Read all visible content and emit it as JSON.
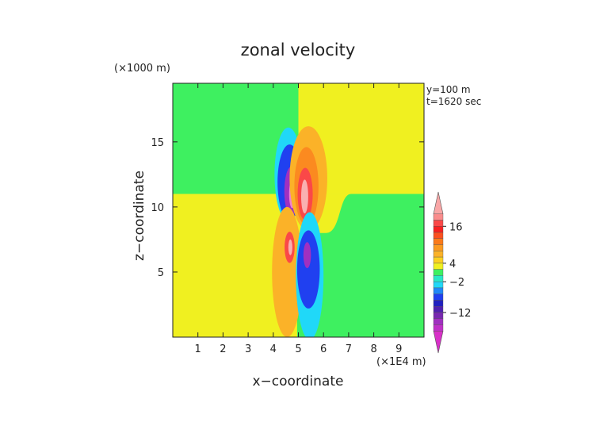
{
  "chart_data": {
    "type": "heatmap",
    "title": "zonal velocity",
    "xlabel": "x−coordinate",
    "ylabel": "z−coordinate",
    "x_units": "(×1E4 m)",
    "y_units": "(×1000 m)",
    "annotations": [
      "y=100 m",
      "t=1620 sec"
    ],
    "xlim": [
      0,
      10
    ],
    "ylim": [
      0,
      19.5
    ],
    "x_ticks": [
      "1",
      "2",
      "3",
      "4",
      "5",
      "6",
      "7",
      "8",
      "9"
    ],
    "x_tick_values": [
      1,
      2,
      3,
      4,
      5,
      6,
      7,
      8,
      9
    ],
    "y_ticks": [
      "5",
      "10",
      "15"
    ],
    "y_tick_values": [
      5,
      10,
      15
    ],
    "background_regions": [
      {
        "name": "upper-left",
        "x": [
          0,
          5
        ],
        "z": [
          11,
          19.5
        ],
        "level": "green"
      },
      {
        "name": "upper-right",
        "x": [
          5,
          10
        ],
        "z": [
          11,
          19.5
        ],
        "level": "yellow"
      },
      {
        "name": "lower-left",
        "x": [
          0,
          5
        ],
        "z": [
          0,
          11
        ],
        "level": "yellow"
      },
      {
        "name": "lower-right",
        "x": [
          5,
          10
        ],
        "z": [
          0,
          11
        ],
        "level": "green"
      }
    ],
    "features": [
      {
        "name": "upper-left-outer",
        "cx": 4.6,
        "cz": 12.5,
        "rx": 0.55,
        "rz": 3.6,
        "level": "cyan"
      },
      {
        "name": "upper-left-blue",
        "cx": 4.65,
        "cz": 11.9,
        "rx": 0.48,
        "rz": 2.9,
        "level": "blue"
      },
      {
        "name": "upper-left-purple",
        "cx": 4.72,
        "cz": 11.2,
        "rx": 0.28,
        "rz": 1.9,
        "level": "purple"
      },
      {
        "name": "upper-left-core",
        "cx": 4.75,
        "cz": 11.0,
        "rx": 0.12,
        "rz": 1.1,
        "level": "pink"
      },
      {
        "name": "upper-right-outer",
        "cx": 5.4,
        "cz": 12.2,
        "rx": 0.75,
        "rz": 4.0,
        "level": "light-orange"
      },
      {
        "name": "upper-right-orange",
        "cx": 5.32,
        "cz": 11.6,
        "rx": 0.48,
        "rz": 3.0,
        "level": "orange"
      },
      {
        "name": "upper-right-red",
        "cx": 5.27,
        "cz": 11.0,
        "rx": 0.3,
        "rz": 2.0,
        "level": "red"
      },
      {
        "name": "upper-right-core",
        "cx": 5.25,
        "cz": 10.8,
        "rx": 0.14,
        "rz": 1.3,
        "level": "light-pink"
      },
      {
        "name": "lower-left-outer",
        "cx": 4.55,
        "cz": 5.0,
        "rx": 0.6,
        "rz": 5.0,
        "level": "light-orange"
      },
      {
        "name": "lower-left-red",
        "cx": 4.65,
        "cz": 6.9,
        "rx": 0.2,
        "rz": 1.2,
        "level": "red"
      },
      {
        "name": "lower-left-core",
        "cx": 4.68,
        "cz": 6.9,
        "rx": 0.08,
        "rz": 0.6,
        "level": "light-pink"
      },
      {
        "name": "lower-right-outer",
        "cx": 5.45,
        "cz": 4.7,
        "rx": 0.55,
        "rz": 4.9,
        "level": "cyan"
      },
      {
        "name": "lower-right-blue",
        "cx": 5.4,
        "cz": 5.2,
        "rx": 0.45,
        "rz": 3.0,
        "level": "blue"
      },
      {
        "name": "lower-right-purple",
        "cx": 5.35,
        "cz": 6.3,
        "rx": 0.15,
        "rz": 1.0,
        "level": "purple"
      }
    ],
    "colorbar": {
      "tick_labels": [
        "16",
        "4",
        "−2",
        "−12"
      ],
      "tick_values": [
        16,
        4,
        -2,
        -12
      ],
      "levels": [
        {
          "min": 20,
          "max": 22,
          "color": "#f9a6a6"
        },
        {
          "min": 18,
          "max": 20,
          "color": "#fa8c8c"
        },
        {
          "min": 16,
          "max": 18,
          "color": "#fa4848"
        },
        {
          "min": 14,
          "max": 16,
          "color": "#f82020"
        },
        {
          "min": 12,
          "max": 14,
          "color": "#fb5020"
        },
        {
          "min": 10,
          "max": 12,
          "color": "#fb7a1a"
        },
        {
          "min": 8,
          "max": 10,
          "color": "#fb9a20"
        },
        {
          "min": 6,
          "max": 8,
          "color": "#fbb228"
        },
        {
          "min": 4,
          "max": 6,
          "color": "#fbd020"
        },
        {
          "min": 2,
          "max": 4,
          "color": "#f0f020"
        },
        {
          "min": 0,
          "max": 2,
          "color": "#3ef060"
        },
        {
          "min": -2,
          "max": 0,
          "color": "#28e8c8"
        },
        {
          "min": -4,
          "max": -2,
          "color": "#20d8f8"
        },
        {
          "min": -6,
          "max": -4,
          "color": "#2088f8"
        },
        {
          "min": -8,
          "max": -6,
          "color": "#2040f0"
        },
        {
          "min": -10,
          "max": -8,
          "color": "#2020c0"
        },
        {
          "min": -12,
          "max": -10,
          "color": "#5020b0"
        },
        {
          "min": -14,
          "max": -12,
          "color": "#7828b0"
        },
        {
          "min": -16,
          "max": -14,
          "color": "#a030c0"
        },
        {
          "min": -18,
          "max": -16,
          "color": "#c030c8"
        },
        {
          "min": -20,
          "max": -18,
          "color": "#d830c8"
        }
      ]
    }
  },
  "palette": {
    "green": "#3ef060",
    "yellow": "#f0f020",
    "cyan": "#20d8f8",
    "blue": "#2040f0",
    "purple": "#a030c0",
    "pink": "#f080d0",
    "light-orange": "#fbb228",
    "orange": "#fb8a20",
    "red": "#fa4848",
    "light-pink": "#f9b0b0",
    "axis": "#222222"
  }
}
